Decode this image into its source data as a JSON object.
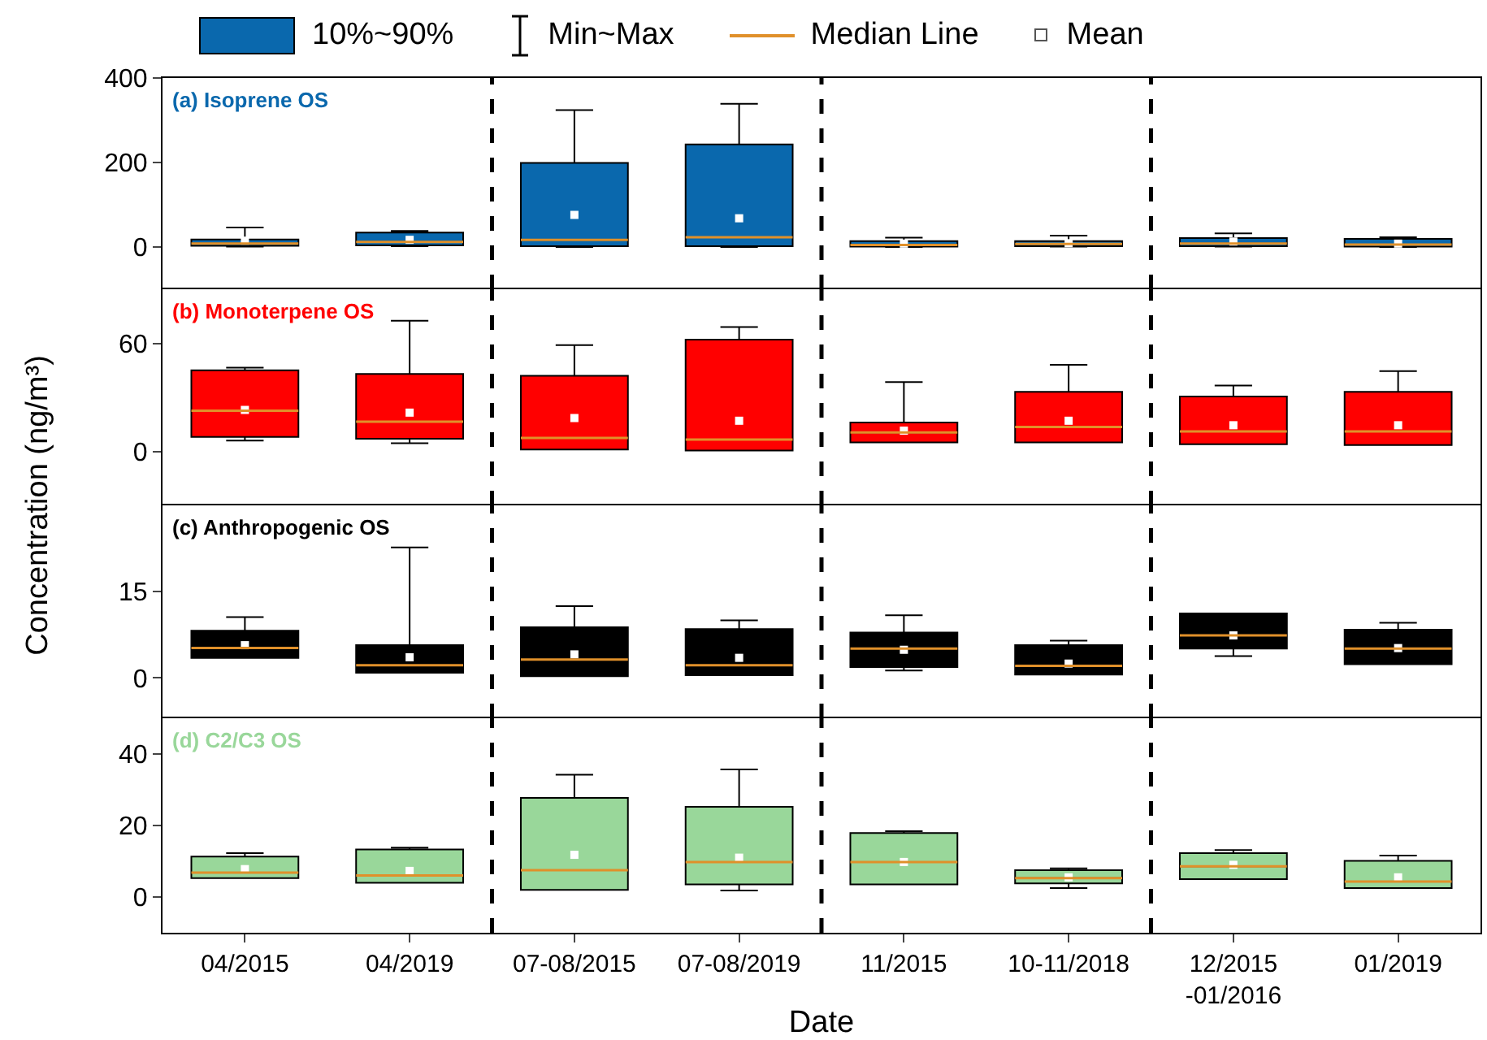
{
  "chart_data": [
    {
      "type": "box",
      "title": "(a) Isoprene OS",
      "ylabel": "Concentration (ng/m³)",
      "annotations": [
        "10%~90%",
        "Min~Max",
        "Median Line",
        "Mean"
      ],
      "categories": [
        "04/2015",
        "04/2019",
        "07-08/2015",
        "07-08/2019",
        "11/2015",
        "10-11/2018",
        "12/2015\n-01/2016",
        "01/2019"
      ],
      "series": [
        {
          "color": "#0a68ad",
          "boxes": [
            {
              "low": 1,
              "q1": 3,
              "median": 8,
              "q3": 18,
              "high": 46,
              "mean": 15
            },
            {
              "low": 2,
              "q1": 4,
              "median": 12,
              "q3": 34,
              "high": 38,
              "mean": 17
            },
            {
              "low": 0,
              "q1": 2,
              "median": 17,
              "q3": 199,
              "high": 324,
              "mean": 76
            },
            {
              "low": 0,
              "q1": 2,
              "median": 23,
              "q3": 243,
              "high": 339,
              "mean": 68
            },
            {
              "low": 0,
              "q1": 1,
              "median": 5,
              "q3": 14,
              "high": 22,
              "mean": 8
            },
            {
              "low": 1,
              "q1": 2,
              "median": 7,
              "q3": 14,
              "high": 27,
              "mean": 9
            },
            {
              "low": 1,
              "q1": 2,
              "median": 8,
              "q3": 21,
              "high": 32,
              "mean": 13
            },
            {
              "low": 0,
              "q1": 1,
              "median": 6,
              "q3": 19,
              "high": 23,
              "mean": 8
            }
          ]
        }
      ],
      "ylim": [
        -100,
        400
      ],
      "yticks": [
        0,
        200,
        400
      ],
      "tick_labels": "y",
      "marker": "square"
    },
    {
      "type": "box",
      "title": "(b) Monoterpene OS",
      "categories": [
        "04/2015",
        "04/2019",
        "07-08/2015",
        "07-08/2019",
        "11/2015",
        "10-11/2018",
        "12/2015\n-01/2016",
        "01/2019"
      ],
      "series": [
        {
          "color": "#ff0000",
          "boxes": [
            {
              "low": 6,
              "q1": 8,
              "median": 22.5,
              "q3": 45,
              "high": 46.5,
              "mean": 23
            },
            {
              "low": 4.5,
              "q1": 7,
              "median": 16.5,
              "q3": 43,
              "high": 72.5,
              "mean": 21.5
            },
            {
              "low": 1,
              "q1": 1,
              "median": 7.5,
              "q3": 42,
              "high": 59,
              "mean": 18.5
            },
            {
              "low": 0.5,
              "q1": 0.5,
              "median": 6.5,
              "q3": 62,
              "high": 69,
              "mean": 17
            },
            {
              "low": 5,
              "q1": 5,
              "median": 10.5,
              "q3": 16,
              "high": 38.5,
              "mean": 11.5
            },
            {
              "low": 5,
              "q1": 5,
              "median": 13.5,
              "q3": 33,
              "high": 48,
              "mean": 17
            },
            {
              "low": 4,
              "q1": 4,
              "median": 11,
              "q3": 30.5,
              "high": 36.5,
              "mean": 14.5
            },
            {
              "low": 3.5,
              "q1": 3.5,
              "median": 11,
              "q3": 33,
              "high": 44.5,
              "mean": 14.5
            }
          ]
        }
      ],
      "ylim": [
        -30,
        90
      ],
      "yticks": [
        0,
        60
      ],
      "tick_labels": "y",
      "marker": "square"
    },
    {
      "type": "box",
      "title": "(c) Anthropogenic OS",
      "categories": [
        "04/2015",
        "04/2019",
        "07-08/2015",
        "07-08/2019",
        "11/2015",
        "10-11/2018",
        "12/2015\n-01/2016",
        "01/2019"
      ],
      "series": [
        {
          "color": "#000000",
          "boxes": [
            {
              "low": 3.5,
              "q1": 3.5,
              "median": 5.2,
              "q3": 8.2,
              "high": 10.6,
              "mean": 5.7
            },
            {
              "low": 0.9,
              "q1": 0.9,
              "median": 2.2,
              "q3": 5.7,
              "high": 22.7,
              "mean": 3.6
            },
            {
              "low": 0.3,
              "q1": 0.3,
              "median": 3.2,
              "q3": 8.8,
              "high": 12.5,
              "mean": 4.1
            },
            {
              "low": 0.5,
              "q1": 0.5,
              "median": 2.2,
              "q3": 8.5,
              "high": 10,
              "mean": 3.5
            },
            {
              "low": 1.3,
              "q1": 1.9,
              "median": 5.1,
              "q3": 7.9,
              "high": 10.9,
              "mean": 4.9
            },
            {
              "low": 0.6,
              "q1": 0.6,
              "median": 2.1,
              "q3": 5.7,
              "high": 6.5,
              "mean": 2.5
            },
            {
              "low": 3.8,
              "q1": 5.1,
              "median": 7.4,
              "q3": 11.2,
              "high": 11.2,
              "mean": 7.4
            },
            {
              "low": 2.4,
              "q1": 2.4,
              "median": 5.1,
              "q3": 8.4,
              "high": 9.6,
              "mean": 5.2
            }
          ]
        }
      ],
      "ylim": [
        -7,
        30
      ],
      "yticks": [
        0,
        15
      ],
      "tick_labels": "y",
      "marker": "square"
    },
    {
      "type": "box",
      "title": "(d) C2/C3 OS",
      "xlabel": "Date",
      "categories": [
        "04/2015",
        "04/2019",
        "07-08/2015",
        "07-08/2019",
        "11/2015",
        "10-11/2018",
        "12/2015\n-01/2016",
        "01/2019"
      ],
      "series": [
        {
          "color": "#99d79a",
          "boxes": [
            {
              "low": 5.3,
              "q1": 5.3,
              "median": 6.8,
              "q3": 11.3,
              "high": 12.3,
              "mean": 7.8
            },
            {
              "low": 4,
              "q1": 4,
              "median": 6,
              "q3": 13.3,
              "high": 13.8,
              "mean": 7.3
            },
            {
              "low": 2,
              "q1": 2,
              "median": 7.5,
              "q3": 27.7,
              "high": 34.2,
              "mean": 11.8
            },
            {
              "low": 1.8,
              "q1": 3.5,
              "median": 9.8,
              "q3": 25.2,
              "high": 35.7,
              "mean": 11
            },
            {
              "low": 3.5,
              "q1": 3.5,
              "median": 9.8,
              "q3": 17.9,
              "high": 18.4,
              "mean": 9.8
            },
            {
              "low": 2.5,
              "q1": 3.8,
              "median": 5.3,
              "q3": 7.5,
              "high": 8,
              "mean": 5.5
            },
            {
              "low": 5,
              "q1": 5,
              "median": 8.6,
              "q3": 12.3,
              "high": 13.1,
              "mean": 9
            },
            {
              "low": 2.5,
              "q1": 2.5,
              "median": 4.3,
              "q3": 10.1,
              "high": 11.6,
              "mean": 5.5
            }
          ]
        }
      ],
      "ylim": [
        -10,
        50
      ],
      "yticks": [
        0,
        20,
        40
      ],
      "marker": "square"
    }
  ]
}
